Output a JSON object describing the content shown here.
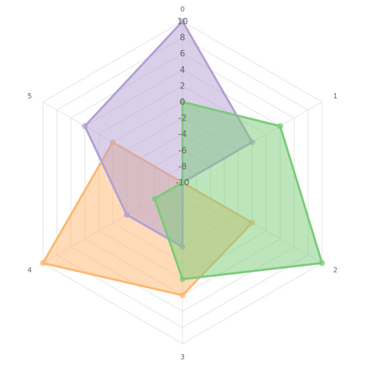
{
  "chart_data": {
    "type": "radar",
    "title": "",
    "axes": [
      "0",
      "1",
      "2",
      "3",
      "4",
      "5"
    ],
    "rlim": [
      -10,
      10
    ],
    "ticks": [
      "-10",
      "-8",
      "-6",
      "-4",
      "-2",
      "0",
      "2",
      "4",
      "6",
      "8",
      "10"
    ],
    "grid": true,
    "legend": "none",
    "series": [
      {
        "color": "#ffb870",
        "values": [
          -10,
          -10,
          0,
          4,
          10,
          0
        ]
      },
      {
        "color": "#b4a0d4",
        "values": [
          10,
          0,
          -10,
          -2,
          -2,
          4
        ]
      },
      {
        "color": "#7acb7a",
        "values": [
          0,
          4,
          10,
          2,
          -6,
          -10
        ]
      }
    ]
  }
}
